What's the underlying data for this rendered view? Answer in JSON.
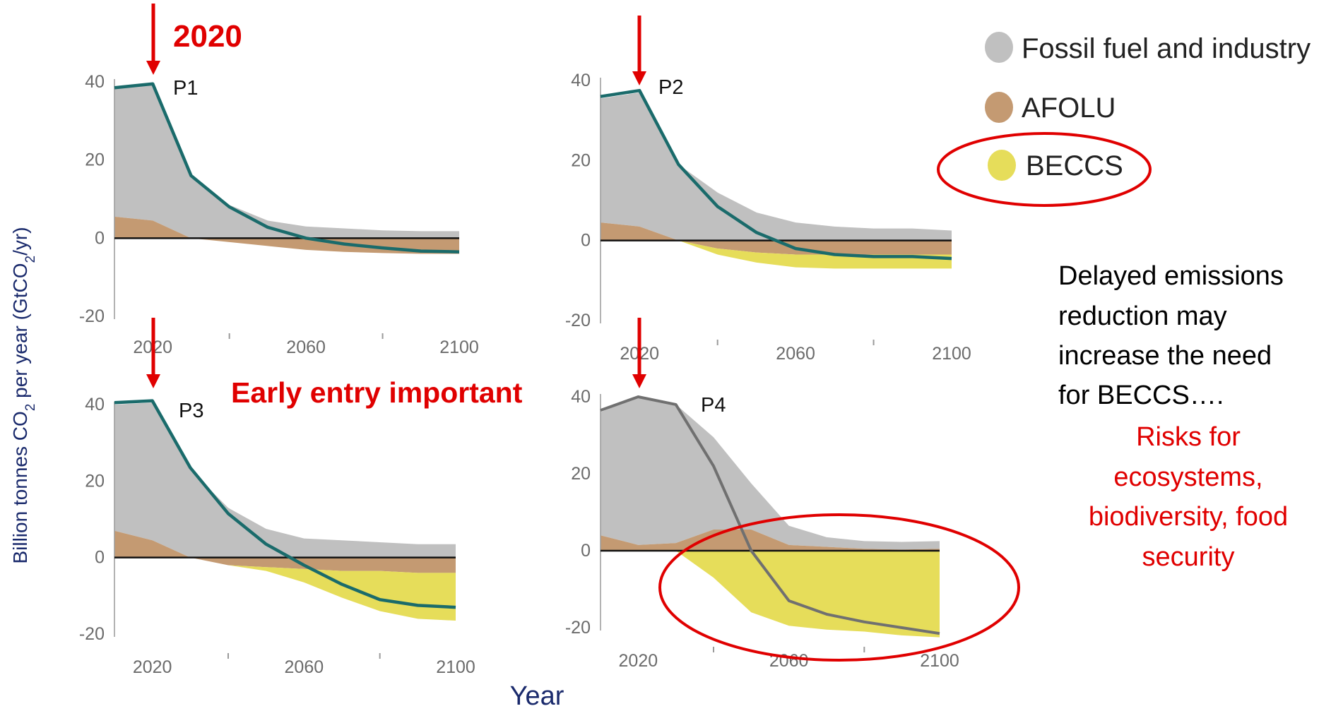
{
  "annotations": {
    "year_2020": "2020",
    "early_entry": "Early entry important",
    "delayed_note": [
      "Delayed emissions",
      "reduction may",
      "increase the need",
      "for BECCS…."
    ],
    "risks_note": [
      "Risks for",
      "ecosystems,",
      "biodiversity, food",
      "security"
    ]
  },
  "axes": {
    "ylabel_parts": [
      "Billion tonnes CO",
      "2",
      " per year (GtCO",
      "2",
      "/yr)"
    ],
    "xlabel": "Year"
  },
  "legend": [
    {
      "label": "Fossil fuel and industry",
      "color": "#c0c0c0"
    },
    {
      "label": "AFOLU",
      "color": "#c49a72"
    },
    {
      "label": "BECCS",
      "color": "#e6dd5a"
    }
  ],
  "colors": {
    "fossil": "#c0c0c0",
    "afolu": "#c49a72",
    "beccs": "#e6dd5a",
    "net_line": "#1a6b6b",
    "net_line_p4": "#707070",
    "arrow": "#e00000",
    "axis": "#9a9a9a"
  },
  "chart_data": [
    {
      "type": "area",
      "title": "P1",
      "x": [
        2010,
        2020,
        2030,
        2040,
        2050,
        2060,
        2070,
        2080,
        2090,
        2100
      ],
      "ylim": [
        -20,
        40
      ],
      "xticks": [
        2020,
        2060,
        2100
      ],
      "yticks": [
        40,
        20,
        0,
        -20
      ],
      "series": [
        {
          "name": "Fossil fuel and industry",
          "values": [
            33,
            35,
            16,
            8.5,
            4.5,
            3,
            2.5,
            2,
            1.8,
            1.8
          ]
        },
        {
          "name": "AFOLU",
          "values": [
            5.5,
            4.5,
            0,
            -1,
            -2,
            -3,
            -3.5,
            -3.8,
            -4,
            -4
          ]
        },
        {
          "name": "BECCS",
          "values": [
            0,
            0,
            0,
            0,
            0,
            0,
            0,
            0,
            0,
            0
          ]
        },
        {
          "name": "Net",
          "values": [
            38.5,
            39.5,
            16,
            8,
            2.8,
            0,
            -1.5,
            -2.5,
            -3.3,
            -3.5
          ]
        }
      ]
    },
    {
      "type": "area",
      "title": "P2",
      "x": [
        2010,
        2020,
        2030,
        2040,
        2050,
        2060,
        2070,
        2080,
        2090,
        2100
      ],
      "ylim": [
        -20,
        40
      ],
      "xticks": [
        2020,
        2060,
        2100
      ],
      "yticks": [
        40,
        20,
        0,
        -20
      ],
      "series": [
        {
          "name": "Fossil fuel and industry",
          "values": [
            31,
            33.5,
            19,
            12,
            7,
            4.5,
            3.5,
            3,
            3,
            2.5
          ]
        },
        {
          "name": "AFOLU",
          "values": [
            4.5,
            3.5,
            0,
            -2,
            -3,
            -3.5,
            -3.5,
            -3.5,
            -3.5,
            -3.5
          ]
        },
        {
          "name": "BECCS",
          "values": [
            0,
            0,
            0,
            -1.5,
            -2.5,
            -3.2,
            -3.5,
            -3.5,
            -3.5,
            -3.5
          ]
        },
        {
          "name": "Net",
          "values": [
            36,
            37.5,
            19,
            8.5,
            2,
            -2,
            -3.5,
            -4,
            -4,
            -4.5
          ]
        }
      ]
    },
    {
      "type": "area",
      "title": "P3",
      "x": [
        2010,
        2020,
        2030,
        2040,
        2050,
        2060,
        2070,
        2080,
        2090,
        2100
      ],
      "ylim": [
        -20,
        40
      ],
      "xticks": [
        2020,
        2060,
        2100
      ],
      "yticks": [
        40,
        20,
        0,
        -20
      ],
      "series": [
        {
          "name": "Fossil fuel and industry",
          "values": [
            33,
            36,
            23,
            13,
            7.5,
            5,
            4.5,
            4,
            3.5,
            3.5
          ]
        },
        {
          "name": "AFOLU",
          "values": [
            7,
            4.5,
            0,
            -2,
            -2.5,
            -3,
            -3.5,
            -3.5,
            -4,
            -4
          ]
        },
        {
          "name": "BECCS",
          "values": [
            0,
            0,
            0,
            0,
            -1,
            -3.5,
            -7,
            -10.5,
            -12,
            -12.5
          ]
        },
        {
          "name": "Net",
          "values": [
            40.5,
            41,
            23.5,
            11.5,
            3.5,
            -2,
            -7,
            -11,
            -12.5,
            -13
          ]
        }
      ]
    },
    {
      "type": "area",
      "title": "P4",
      "x": [
        2010,
        2020,
        2030,
        2040,
        2050,
        2060,
        2070,
        2080,
        2090,
        2100
      ],
      "ylim": [
        -20,
        40
      ],
      "xticks": [
        2020,
        2060,
        2100
      ],
      "yticks": [
        40,
        20,
        0,
        -20
      ],
      "series": [
        {
          "name": "Fossil fuel and industry",
          "values": [
            32,
            38.5,
            36,
            24,
            12,
            5,
            2.5,
            2,
            2,
            2
          ]
        },
        {
          "name": "AFOLU",
          "values": [
            4,
            1.5,
            2,
            5.5,
            5.5,
            1.5,
            1,
            0.5,
            0.3,
            0.5
          ]
        },
        {
          "name": "BECCS",
          "values": [
            0,
            0,
            0,
            -7,
            -16,
            -19.5,
            -20.5,
            -21,
            -22,
            -22.5
          ]
        },
        {
          "name": "Net",
          "values": [
            36.5,
            40,
            38,
            22,
            0,
            -13,
            -16.5,
            -18.5,
            -20,
            -21.5
          ]
        }
      ]
    }
  ]
}
